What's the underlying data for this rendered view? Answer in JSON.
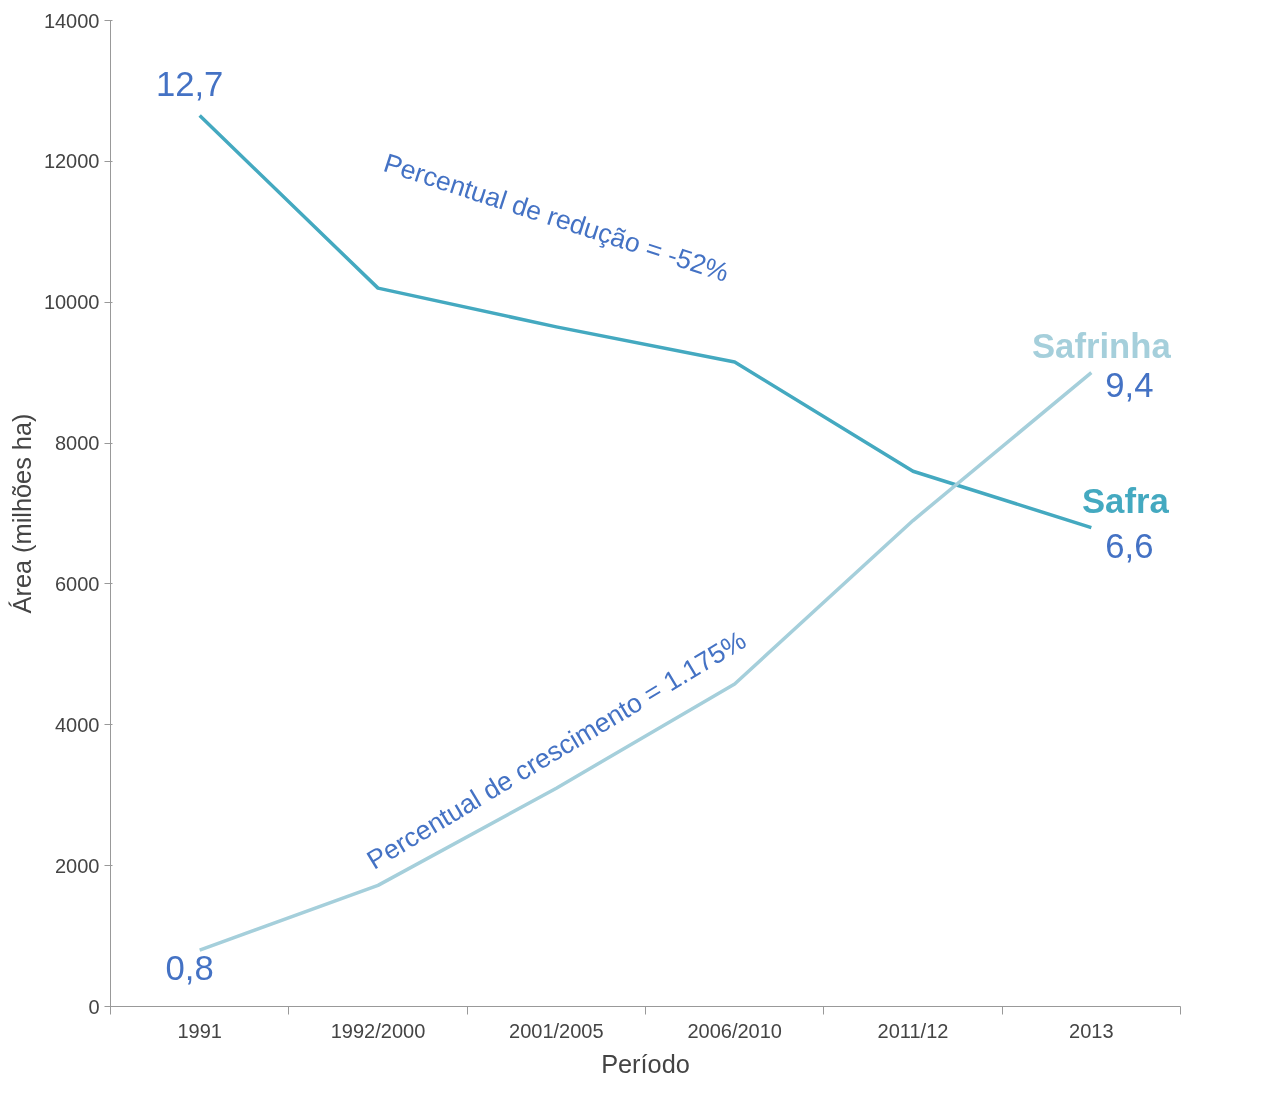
{
  "chart_data": {
    "type": "line",
    "xlabel": "Período",
    "ylabel": "Área (milhões ha)",
    "categories": [
      "1991",
      "1992/2000",
      "2001/2005",
      "2006/2010",
      "2011/12",
      "2013"
    ],
    "series": [
      {
        "name": "Safra",
        "color": "#44a9c0",
        "values": [
          12650,
          10200,
          9650,
          9150,
          7600,
          6800
        ]
      },
      {
        "name": "Safrinha",
        "color": "#a5cfdb",
        "values": [
          800,
          1720,
          3100,
          4580,
          6900,
          9000
        ]
      }
    ],
    "ylim": [
      0,
      14000
    ],
    "yticks": [
      0,
      2000,
      4000,
      6000,
      8000,
      10000,
      12000,
      14000
    ],
    "grid": false,
    "marker": "none",
    "line_style": "solid",
    "annotations": [
      {
        "text": "12,7",
        "x": "1991",
        "y": 12650
      },
      {
        "text": "0,8",
        "x": "1991",
        "y": 800
      },
      {
        "text": "6,6",
        "x": "2013",
        "y": 6800
      },
      {
        "text": "9,4",
        "x": "2013",
        "y": 9000
      },
      "Percentual de redução = -52%",
      "Percentual de crescimento = 1.175%"
    ]
  }
}
